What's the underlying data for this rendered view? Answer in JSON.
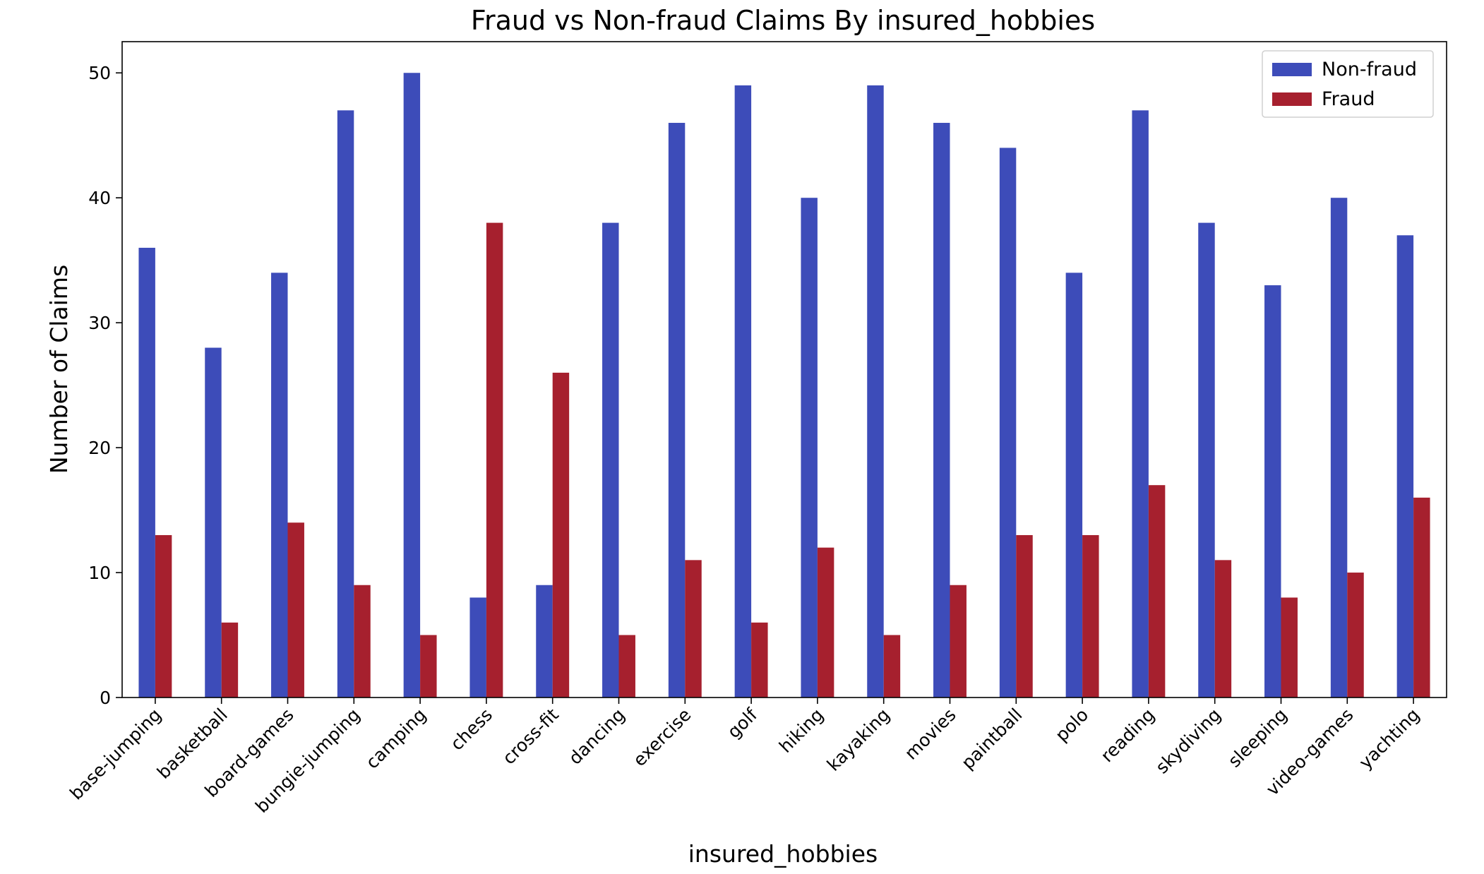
{
  "chart_data": {
    "type": "bar",
    "title": "Fraud vs Non-fraud Claims By insured_hobbies",
    "xlabel": "insured_hobbies",
    "ylabel": "Number of Claims",
    "categories": [
      "base-jumping",
      "basketball",
      "board-games",
      "bungie-jumping",
      "camping",
      "chess",
      "cross-fit",
      "dancing",
      "exercise",
      "golf",
      "hiking",
      "kayaking",
      "movies",
      "paintball",
      "polo",
      "reading",
      "skydiving",
      "sleeping",
      "video-games",
      "yachting"
    ],
    "series": [
      {
        "name": "Non-fraud",
        "color": "#3d4cb9",
        "values": [
          36,
          28,
          34,
          47,
          50,
          8,
          9,
          38,
          46,
          49,
          40,
          49,
          46,
          44,
          34,
          47,
          38,
          33,
          40,
          37
        ]
      },
      {
        "name": "Fraud",
        "color": "#a6202e",
        "values": [
          13,
          6,
          14,
          9,
          5,
          38,
          26,
          5,
          11,
          6,
          12,
          5,
          9,
          13,
          13,
          17,
          11,
          8,
          10,
          16
        ]
      }
    ],
    "ylim": [
      0,
      52.5
    ],
    "yticks": [
      "0",
      "10",
      "20",
      "30",
      "40",
      "50"
    ],
    "grid": false,
    "legend_position": "top-right"
  }
}
